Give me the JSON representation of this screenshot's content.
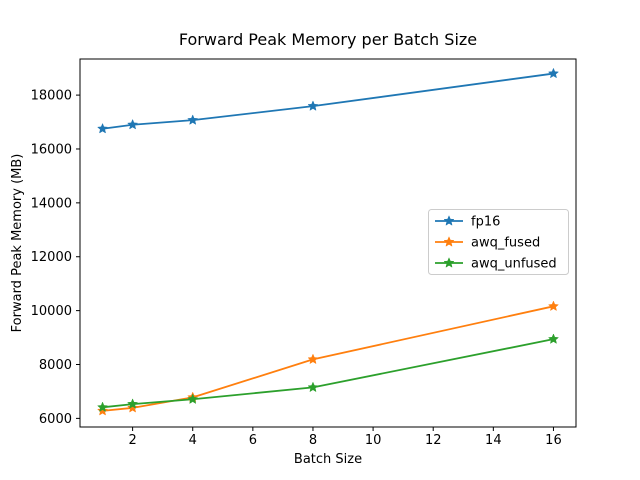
{
  "figure": {
    "title": "Forward Peak Memory per Batch Size"
  },
  "chart_data": {
    "type": "line",
    "title": "Forward Peak Memory per Batch Size",
    "xlabel": "Batch Size",
    "ylabel": "Forward Peak Memory (MB)",
    "x": [
      1,
      2,
      4,
      8,
      16
    ],
    "series": [
      {
        "name": "fp16",
        "color": "#1f77b4",
        "values": [
          16750,
          16900,
          17070,
          17590,
          18800
        ]
      },
      {
        "name": "awq_fused",
        "color": "#ff7f0e",
        "values": [
          6280,
          6390,
          6780,
          8190,
          10160
        ]
      },
      {
        "name": "awq_unfused",
        "color": "#2ca02c",
        "values": [
          6410,
          6530,
          6710,
          7150,
          8940
        ]
      }
    ],
    "xticks": [
      2,
      4,
      6,
      8,
      10,
      12,
      14,
      16
    ],
    "yticks": [
      6000,
      8000,
      10000,
      12000,
      14000,
      16000,
      18000
    ],
    "xlim": [
      0.25,
      16.75
    ],
    "ylim": [
      5680,
      19340
    ],
    "grid": false,
    "marker": "star",
    "legend": {
      "position": "center right",
      "entries": [
        "fp16",
        "awq_fused",
        "awq_unfused"
      ]
    }
  }
}
